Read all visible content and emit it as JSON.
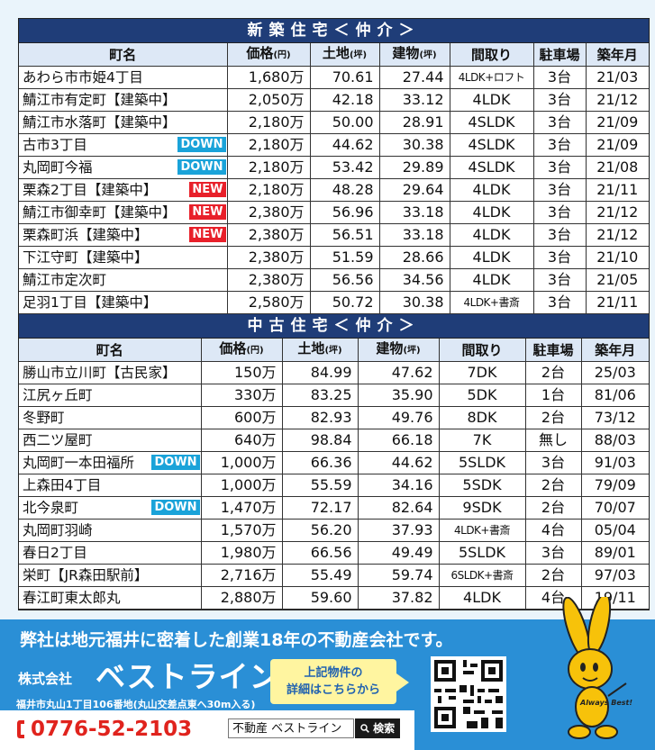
{
  "sections": {
    "new_title": "新築住宅＜仲介＞",
    "used_title": "中古住宅＜仲介＞"
  },
  "headers": {
    "town": "町名",
    "price": "価格",
    "price_unit": "(円)",
    "land": "土地",
    "land_unit": "(坪)",
    "building": "建物",
    "building_unit": "(坪)",
    "layout": "間取り",
    "parking": "駐車場",
    "built": "築年月"
  },
  "new_listings": [
    {
      "town": "あわら市市姫4丁目",
      "badge": "",
      "price": "1,680万",
      "land": "70.61",
      "building": "27.44",
      "layout": "4LDK+ロフト",
      "parking": "3台",
      "built": "21/03"
    },
    {
      "town": "鯖江市有定町【建築中】",
      "badge": "",
      "price": "2,050万",
      "land": "42.18",
      "building": "33.12",
      "layout": "4LDK",
      "parking": "3台",
      "built": "21/12"
    },
    {
      "town": "鯖江市水落町【建築中】",
      "badge": "",
      "price": "2,180万",
      "land": "50.00",
      "building": "28.91",
      "layout": "4SLDK",
      "parking": "3台",
      "built": "21/09"
    },
    {
      "town": "古市3丁目",
      "badge": "DOWN",
      "price": "2,180万",
      "land": "44.62",
      "building": "30.38",
      "layout": "4SLDK",
      "parking": "3台",
      "built": "21/09"
    },
    {
      "town": "丸岡町今福",
      "badge": "DOWN",
      "price": "2,180万",
      "land": "53.42",
      "building": "29.89",
      "layout": "4SLDK",
      "parking": "3台",
      "built": "21/08"
    },
    {
      "town": "栗森2丁目【建築中】",
      "badge": "NEW",
      "price": "2,180万",
      "land": "48.28",
      "building": "29.64",
      "layout": "4LDK",
      "parking": "3台",
      "built": "21/11"
    },
    {
      "town": "鯖江市御幸町【建築中】",
      "badge": "NEW",
      "price": "2,380万",
      "land": "56.96",
      "building": "33.18",
      "layout": "4LDK",
      "parking": "3台",
      "built": "21/12"
    },
    {
      "town": "栗森町浜【建築中】",
      "badge": "NEW",
      "price": "2,380万",
      "land": "56.51",
      "building": "33.18",
      "layout": "4LDK",
      "parking": "3台",
      "built": "21/12"
    },
    {
      "town": "下江守町【建築中】",
      "badge": "",
      "price": "2,380万",
      "land": "51.59",
      "building": "28.66",
      "layout": "4LDK",
      "parking": "3台",
      "built": "21/10"
    },
    {
      "town": "鯖江市定次町",
      "badge": "",
      "price": "2,380万",
      "land": "56.56",
      "building": "34.56",
      "layout": "4LDK",
      "parking": "3台",
      "built": "21/05"
    },
    {
      "town": "足羽1丁目【建築中】",
      "badge": "",
      "price": "2,580万",
      "land": "50.72",
      "building": "30.38",
      "layout": "4LDK+書斎",
      "parking": "3台",
      "built": "21/11"
    }
  ],
  "used_listings": [
    {
      "town": "勝山市立川町【古民家】",
      "badge": "",
      "price": "150万",
      "land": "84.99",
      "building": "47.62",
      "layout": "7DK",
      "parking": "2台",
      "built": "25/03"
    },
    {
      "town": "江尻ヶ丘町",
      "badge": "",
      "price": "330万",
      "land": "83.25",
      "building": "35.90",
      "layout": "5DK",
      "parking": "1台",
      "built": "81/06"
    },
    {
      "town": "冬野町",
      "badge": "",
      "price": "600万",
      "land": "82.93",
      "building": "49.76",
      "layout": "8DK",
      "parking": "2台",
      "built": "73/12"
    },
    {
      "town": "西二ツ屋町",
      "badge": "",
      "price": "640万",
      "land": "98.84",
      "building": "66.18",
      "layout": "7K",
      "parking": "無し",
      "built": "88/03"
    },
    {
      "town": "丸岡町一本田福所",
      "badge": "DOWN",
      "price": "1,000万",
      "land": "66.36",
      "building": "44.62",
      "layout": "5SLDK",
      "parking": "3台",
      "built": "91/03"
    },
    {
      "town": "上森田4丁目",
      "badge": "",
      "price": "1,000万",
      "land": "55.59",
      "building": "34.16",
      "layout": "5SDK",
      "parking": "2台",
      "built": "79/09"
    },
    {
      "town": "北今泉町",
      "badge": "DOWN",
      "price": "1,470万",
      "land": "72.17",
      "building": "82.64",
      "layout": "9SDK",
      "parking": "2台",
      "built": "70/07"
    },
    {
      "town": "丸岡町羽崎",
      "badge": "",
      "price": "1,570万",
      "land": "56.20",
      "building": "37.93",
      "layout": "4LDK+書斎",
      "parking": "4台",
      "built": "05/04"
    },
    {
      "town": "春日2丁目",
      "badge": "",
      "price": "1,980万",
      "land": "66.56",
      "building": "49.49",
      "layout": "5SLDK",
      "parking": "3台",
      "built": "89/01"
    },
    {
      "town": "栄町【JR森田駅前】",
      "badge": "",
      "price": "2,716万",
      "land": "55.49",
      "building": "59.74",
      "layout": "6SLDK+書斎",
      "parking": "2台",
      "built": "97/03"
    },
    {
      "town": "春江町東太郎丸",
      "badge": "",
      "price": "2,880万",
      "land": "59.60",
      "building": "37.82",
      "layout": "4LDK",
      "parking": "4台",
      "built": "19/11"
    }
  ],
  "footer": {
    "tagline": "弊社は地元福井に密着した創業18年の不動産会社です。",
    "company_prefix": "株式会社",
    "company_name": "ベストライン",
    "address": "福井市丸山1丁目106番地(丸山交差点東へ30m入る)",
    "phone": "0776-52-2103",
    "callout_line1": "上記物件の",
    "callout_line2": "詳細はこちらから",
    "search_value": "不動産 ベストライン",
    "search_button": "検索",
    "mascot_caption": "Always Best!"
  },
  "colors": {
    "header_bg": "#1f3d78",
    "column_header_bg": "#dde8f6",
    "badge_down": "#1aa3d9",
    "badge_new": "#e8202a",
    "footer_bg": "#2a8fd6",
    "phone": "#e0231d"
  }
}
